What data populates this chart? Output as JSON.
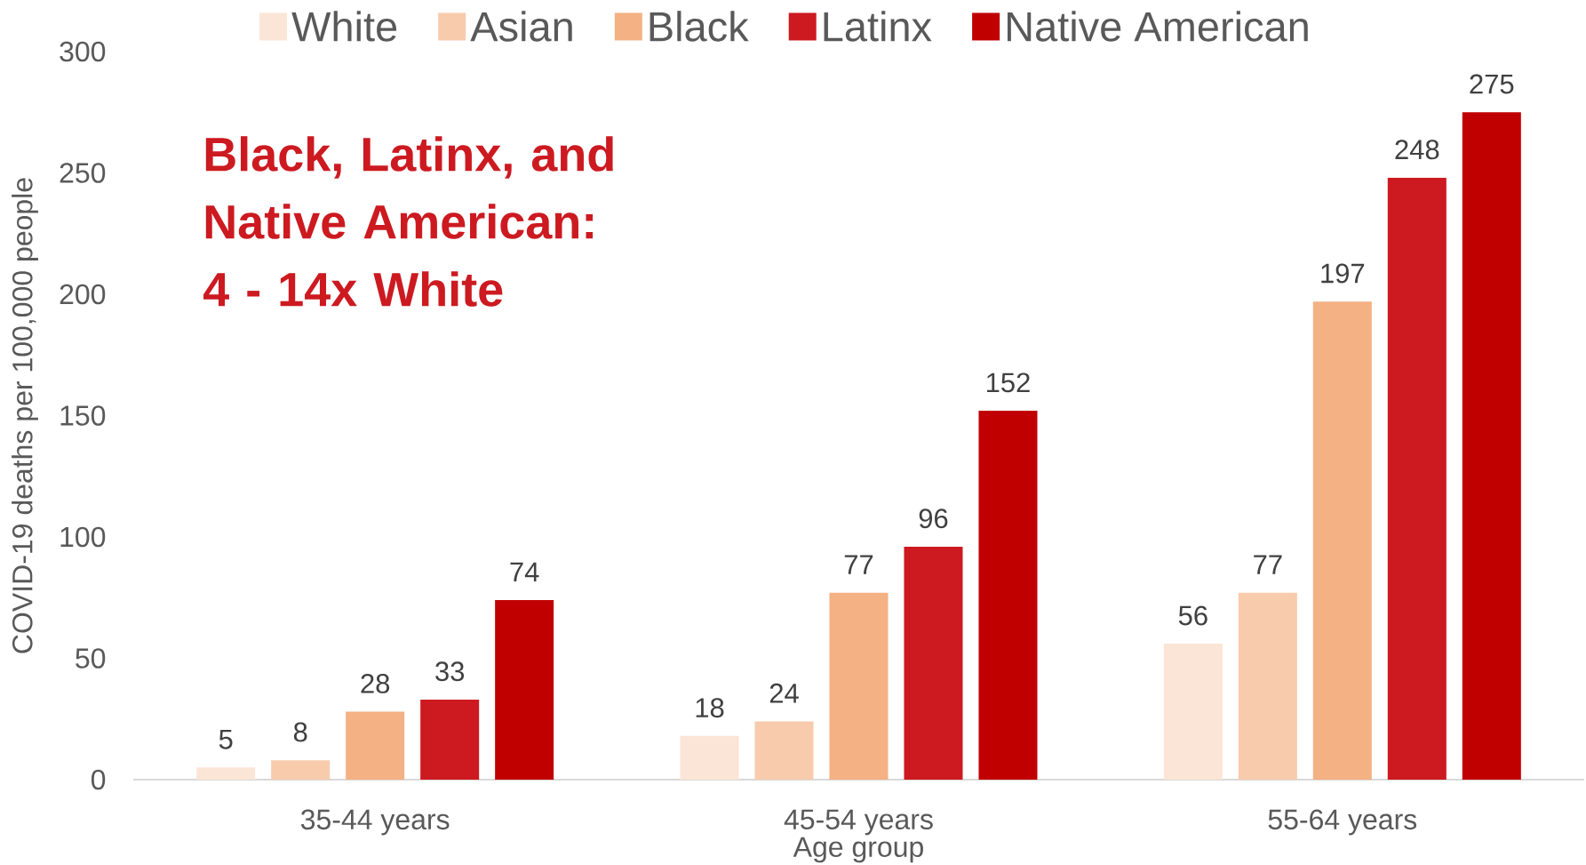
{
  "chart_data": {
    "type": "bar",
    "xlabel": "Age group",
    "ylabel": "COVID-19 deaths per 100,000 people",
    "annotations": [
      "Black, Latinx, and Native American: 4 - 14x White"
    ],
    "categories": [
      "35-44 years",
      "45-54 years",
      "55-64 years"
    ],
    "series": [
      {
        "name": "White",
        "color": "#fbe5d6",
        "values": [
          5,
          18,
          56
        ]
      },
      {
        "name": "Asian",
        "color": "#f8cbad",
        "values": [
          8,
          24,
          77
        ]
      },
      {
        "name": "Black",
        "color": "#f4b183",
        "values": [
          28,
          77,
          197
        ]
      },
      {
        "name": "Latinx",
        "color": "#cc1a20",
        "values": [
          33,
          96,
          248
        ]
      },
      {
        "name": "Native American",
        "color": "#c00000",
        "values": [
          74,
          152,
          275
        ]
      }
    ],
    "ylim": [
      0,
      300
    ],
    "yticks": [
      0,
      50,
      100,
      150,
      200,
      250,
      300
    ],
    "data_labels": true,
    "legend": "top",
    "grid": false
  }
}
